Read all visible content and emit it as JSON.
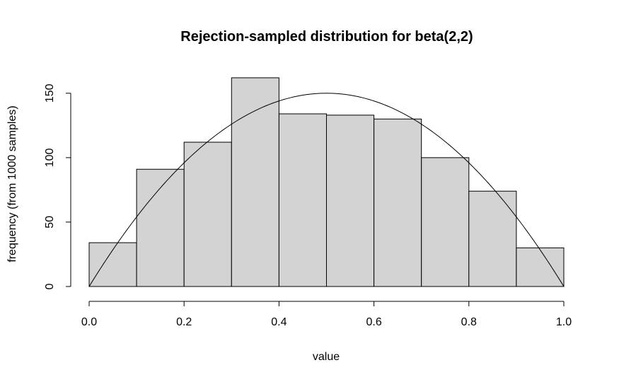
{
  "chart_data": {
    "type": "bar",
    "title": "Rejection-sampled distribution for beta(2,2)",
    "xlabel": "value",
    "ylabel": "frequency (from 1000 samples)",
    "bins": [
      {
        "from": 0.0,
        "to": 0.1,
        "count": 34
      },
      {
        "from": 0.1,
        "to": 0.2,
        "count": 91
      },
      {
        "from": 0.2,
        "to": 0.3,
        "count": 112
      },
      {
        "from": 0.3,
        "to": 0.4,
        "count": 162
      },
      {
        "from": 0.4,
        "to": 0.5,
        "count": 134
      },
      {
        "from": 0.5,
        "to": 0.6,
        "count": 133
      },
      {
        "from": 0.6,
        "to": 0.7,
        "count": 130
      },
      {
        "from": 0.7,
        "to": 0.8,
        "count": 100
      },
      {
        "from": 0.8,
        "to": 0.9,
        "count": 74
      },
      {
        "from": 0.9,
        "to": 1.0,
        "count": 30
      }
    ],
    "xlim": [
      0,
      1
    ],
    "ylim": [
      0,
      162
    ],
    "x_ticks": [
      0.0,
      0.2,
      0.4,
      0.6,
      0.8,
      1.0
    ],
    "x_tick_labels": [
      "0.0",
      "0.2",
      "0.4",
      "0.6",
      "0.8",
      "1.0"
    ],
    "y_ticks": [
      0,
      50,
      100,
      150
    ],
    "y_tick_labels": [
      "0",
      "50",
      "100",
      "150"
    ],
    "overlay_curve": {
      "type": "line",
      "function": "beta(2,2) density scaled to counts",
      "peak": 150
    },
    "bar_fill": "#d3d3d3",
    "bar_stroke": "#000000",
    "grid": false
  }
}
